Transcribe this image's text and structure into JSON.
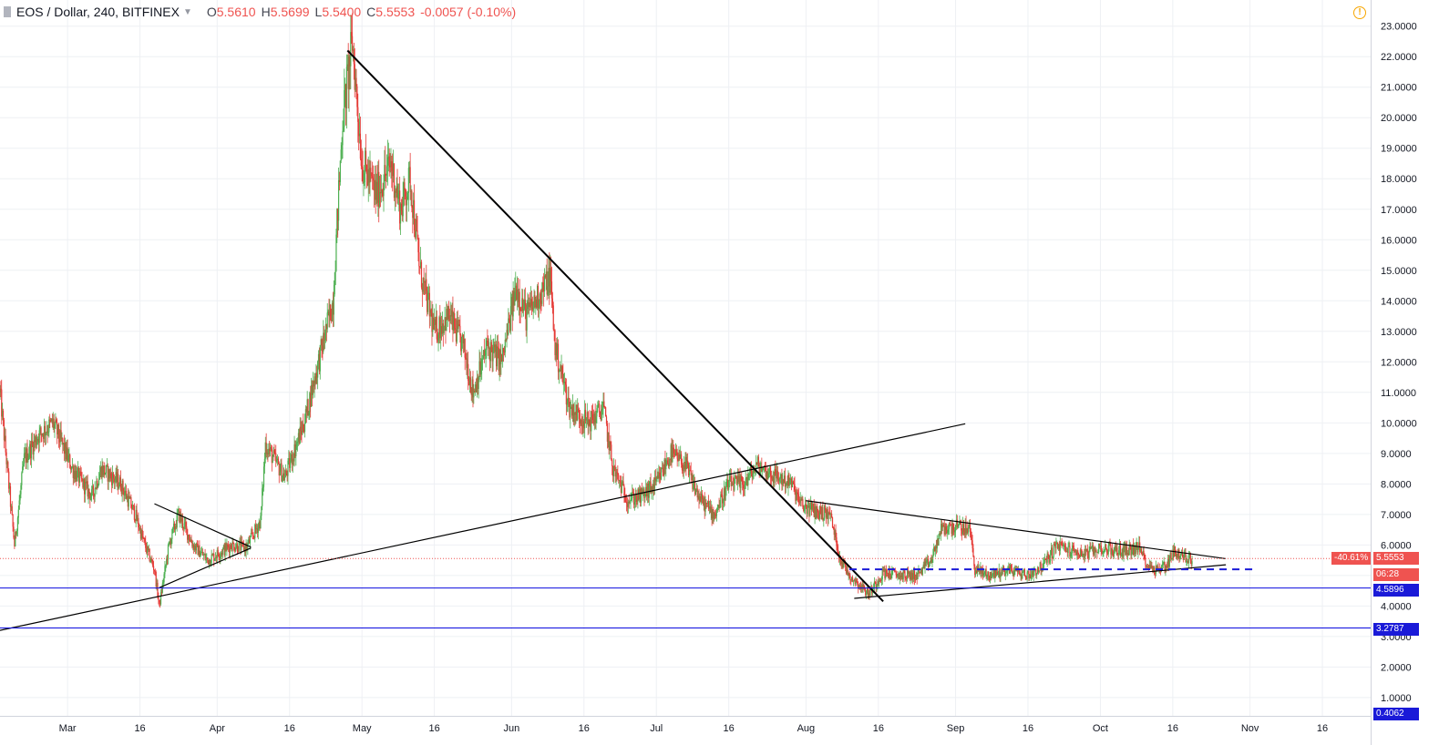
{
  "header": {
    "symbol": "EOS / Dollar, 240, BITFINEX",
    "open_label": "O",
    "open": "5.5610",
    "high_label": "H",
    "high": "5.5699",
    "low_label": "L",
    "low": "5.5400",
    "close_label": "C",
    "close": "5.5553",
    "change": "-0.0057 (-0.10%)"
  },
  "tags": {
    "pct": "-40.61%",
    "price": "5.5553",
    "countdown": "06:28",
    "level1": "4.5896",
    "level2": "3.2787",
    "bottom": "0.4062"
  },
  "colors": {
    "up": "#4caf50",
    "down": "#e53935",
    "grid": "#eef0f4",
    "blue_line": "#0a0adf",
    "price_line": "#ef5350"
  },
  "chart_data": {
    "type": "candlestick",
    "ylim": [
      0.4,
      23.2
    ],
    "y_ticks": [
      "1.0000",
      "2.0000",
      "3.0000",
      "4.0000",
      "5.0000",
      "6.0000",
      "7.0000",
      "8.0000",
      "9.0000",
      "10.0000",
      "11.0000",
      "12.0000",
      "13.0000",
      "14.0000",
      "15.0000",
      "16.0000",
      "17.0000",
      "18.0000",
      "19.0000",
      "20.0000",
      "21.0000",
      "22.0000",
      "23.0000"
    ],
    "x_ticks": [
      "Mar",
      "16",
      "Apr",
      "16",
      "May",
      "16",
      "Jun",
      "16",
      "Jul",
      "16",
      "Aug",
      "16",
      "Sep",
      "16",
      "Oct",
      "16",
      "Nov",
      "16"
    ],
    "x_range": [
      "2018-02-15",
      "2018-11-26"
    ],
    "x_tick_dates": [
      "2018-03-01",
      "2018-03-16",
      "2018-04-01",
      "2018-04-16",
      "2018-05-01",
      "2018-05-16",
      "2018-06-01",
      "2018-06-16",
      "2018-07-01",
      "2018-07-16",
      "2018-08-01",
      "2018-08-16",
      "2018-09-01",
      "2018-09-16",
      "2018-10-01",
      "2018-10-16",
      "2018-11-01",
      "2018-11-16"
    ],
    "price_path": [
      [
        "2018-02-15",
        11.0
      ],
      [
        "2018-02-18",
        6.0
      ],
      [
        "2018-02-20",
        8.8
      ],
      [
        "2018-02-23",
        9.6
      ],
      [
        "2018-02-26",
        10.0
      ],
      [
        "2018-03-02",
        8.5
      ],
      [
        "2018-03-06",
        7.6
      ],
      [
        "2018-03-08",
        8.5
      ],
      [
        "2018-03-12",
        8.0
      ],
      [
        "2018-03-15",
        7.0
      ],
      [
        "2018-03-17",
        6.0
      ],
      [
        "2018-03-19",
        5.2
      ],
      [
        "2018-03-20",
        4.0
      ],
      [
        "2018-03-22",
        6.0
      ],
      [
        "2018-03-24",
        7.0
      ],
      [
        "2018-03-27",
        6.0
      ],
      [
        "2018-03-30",
        5.5
      ],
      [
        "2018-04-04",
        6.0
      ],
      [
        "2018-04-07",
        5.9
      ],
      [
        "2018-04-10",
        6.8
      ],
      [
        "2018-04-11",
        9.3
      ],
      [
        "2018-04-15",
        8.2
      ],
      [
        "2018-04-17",
        9.1
      ],
      [
        "2018-04-19",
        10.0
      ],
      [
        "2018-04-22",
        12.0
      ],
      [
        "2018-04-25",
        14.0
      ],
      [
        "2018-04-27",
        20.0
      ],
      [
        "2018-04-29",
        22.5
      ],
      [
        "2018-05-01",
        18.5
      ],
      [
        "2018-05-04",
        17.5
      ],
      [
        "2018-05-07",
        18.5
      ],
      [
        "2018-05-09",
        17.0
      ],
      [
        "2018-05-11",
        18.0
      ],
      [
        "2018-05-13",
        15.0
      ],
      [
        "2018-05-16",
        13.0
      ],
      [
        "2018-05-19",
        13.5
      ],
      [
        "2018-05-22",
        12.5
      ],
      [
        "2018-05-24",
        11.0
      ],
      [
        "2018-05-27",
        12.5
      ],
      [
        "2018-05-30",
        12.0
      ],
      [
        "2018-06-02",
        14.5
      ],
      [
        "2018-06-04",
        13.5
      ],
      [
        "2018-06-06",
        14.0
      ],
      [
        "2018-06-09",
        14.8
      ],
      [
        "2018-06-10",
        12.5
      ],
      [
        "2018-06-13",
        10.5
      ],
      [
        "2018-06-17",
        10.0
      ],
      [
        "2018-06-20",
        10.5
      ],
      [
        "2018-06-22",
        8.5
      ],
      [
        "2018-06-25",
        7.5
      ],
      [
        "2018-06-28",
        7.6
      ],
      [
        "2018-07-01",
        8.0
      ],
      [
        "2018-07-04",
        9.0
      ],
      [
        "2018-07-07",
        8.6
      ],
      [
        "2018-07-10",
        7.5
      ],
      [
        "2018-07-13",
        7.0
      ],
      [
        "2018-07-16",
        8.0
      ],
      [
        "2018-07-19",
        8.0
      ],
      [
        "2018-07-22",
        8.6
      ],
      [
        "2018-07-25",
        8.3
      ],
      [
        "2018-07-29",
        8.0
      ],
      [
        "2018-07-31",
        7.3
      ],
      [
        "2018-08-03",
        7.1
      ],
      [
        "2018-08-06",
        7.0
      ],
      [
        "2018-08-08",
        5.6
      ],
      [
        "2018-08-10",
        5.0
      ],
      [
        "2018-08-14",
        4.4
      ],
      [
        "2018-08-17",
        5.1
      ],
      [
        "2018-08-21",
        5.0
      ],
      [
        "2018-08-24",
        5.0
      ],
      [
        "2018-08-27",
        5.5
      ],
      [
        "2018-08-29",
        6.5
      ],
      [
        "2018-09-01",
        6.6
      ],
      [
        "2018-09-04",
        6.5
      ],
      [
        "2018-09-05",
        5.2
      ],
      [
        "2018-09-08",
        5.0
      ],
      [
        "2018-09-12",
        5.2
      ],
      [
        "2018-09-16",
        5.0
      ],
      [
        "2018-09-19",
        5.3
      ],
      [
        "2018-09-22",
        6.0
      ],
      [
        "2018-09-25",
        5.8
      ],
      [
        "2018-09-28",
        5.7
      ],
      [
        "2018-10-01",
        5.9
      ],
      [
        "2018-10-05",
        5.8
      ],
      [
        "2018-10-09",
        5.9
      ],
      [
        "2018-10-11",
        5.3
      ],
      [
        "2018-10-13",
        5.2
      ],
      [
        "2018-10-15",
        5.4
      ],
      [
        "2018-10-16",
        5.8
      ],
      [
        "2018-10-18",
        5.6
      ],
      [
        "2018-10-20",
        5.55
      ]
    ],
    "trend_lines": [
      {
        "from": [
          "2018-02-15",
          3.2
        ],
        "to": [
          "2018-09-03",
          9.97
        ]
      },
      {
        "from": [
          "2018-04-28",
          22.2
        ],
        "to": [
          "2018-08-17",
          4.15
        ]
      },
      {
        "from": [
          "2018-03-19",
          7.35
        ],
        "to": [
          "2018-04-08",
          5.93
        ]
      },
      {
        "from": [
          "2018-03-20",
          4.6
        ],
        "to": [
          "2018-04-08",
          5.9
        ]
      },
      {
        "from": [
          "2018-08-01",
          7.45
        ],
        "to": [
          "2018-10-27",
          5.55
        ]
      },
      {
        "from": [
          "2018-08-11",
          4.25
        ],
        "to": [
          "2018-10-27",
          5.35
        ]
      }
    ],
    "dashed_levels": [
      {
        "value": 5.2,
        "from": "2018-08-10",
        "to": "2018-11-02"
      }
    ],
    "horizontal_levels": [
      4.5896,
      3.2787
    ],
    "last_price": 5.5553
  }
}
